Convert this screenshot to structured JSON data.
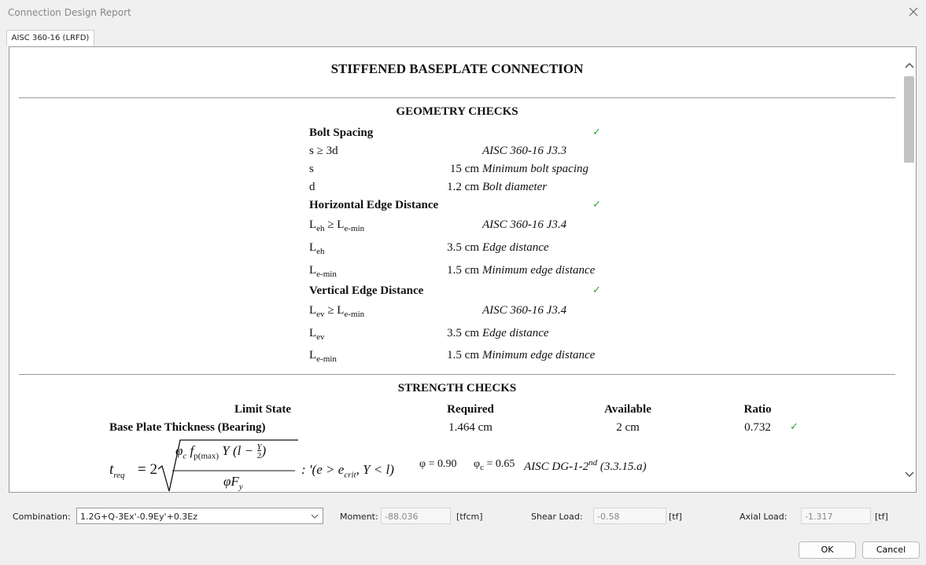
{
  "window": {
    "title": "Connection Design Report",
    "tab": "AISC 360-16 (LRFD)"
  },
  "report": {
    "title": "STIFFENED BASEPLATE CONNECTION",
    "geometry": {
      "heading": "GEOMETRY CHECKS",
      "groups": [
        {
          "name": "Bolt Spacing",
          "check": "✓",
          "rows": [
            {
              "label": [
                "s ≥ 3d"
              ],
              "note": "AISC 360-16 J3.3"
            },
            {
              "label": [
                "s"
              ],
              "value": "15 cm",
              "note": "Minimum bolt spacing"
            },
            {
              "label": [
                "d"
              ],
              "value": "1.2 cm",
              "note": "Bolt diameter"
            }
          ]
        },
        {
          "name": "Horizontal Edge Distance",
          "check": "✓",
          "rows": [
            {
              "label": [
                "L",
                "eh",
                " ≥ L",
                "e-min"
              ],
              "note": "AISC 360-16 J3.4"
            },
            {
              "label": [
                "L",
                "eh"
              ],
              "value": "3.5 cm",
              "note": "Edge distance"
            },
            {
              "label": [
                "L",
                "e-min"
              ],
              "value": "1.5 cm",
              "note": "Minimum edge distance"
            }
          ]
        },
        {
          "name": "Vertical Edge Distance",
          "check": "✓",
          "rows": [
            {
              "label": [
                "L",
                "ev",
                " ≥ L",
                "e-min"
              ],
              "note": "AISC 360-16 J3.4"
            },
            {
              "label": [
                "L",
                "ev"
              ],
              "value": "3.5 cm",
              "note": "Edge distance"
            },
            {
              "label": [
                "L",
                "e-min"
              ],
              "value": "1.5 cm",
              "note": "Minimum edge distance"
            }
          ]
        }
      ]
    },
    "strength": {
      "heading": "STRENGTH CHECKS",
      "columns": [
        "Limit State",
        "Required",
        "Available",
        "Ratio"
      ],
      "rows": [
        {
          "name": "Base Plate Thickness (Bearing)",
          "required": "1.464 cm",
          "available": "2 cm",
          "ratio": "0.732",
          "check": "✓"
        }
      ],
      "formula": {
        "lhs": "t",
        "lhs_sub": "req",
        "eq": "= 2",
        "phi": "φ",
        "phi_sub": "c",
        "f": "f",
        "f_sub": "p(max)",
        "mid": "Y",
        "open": "(l −",
        "fn": "Y",
        "fd": "2",
        "close": ")",
        "den": "φF",
        "den_sub": "y",
        "cond": ": '(e > e",
        "cond_sub": "crit",
        "cond_rest": ", Y < l)",
        "phi_val": "φ = 0.90",
        "phic": "φ",
        "phic_sub": "c",
        "phic_val": " = 0.65",
        "ref": "AISC DG-1-2",
        "ref_sup": "nd",
        "ref_rest": " (3.3.15.a)"
      }
    }
  },
  "controls": {
    "combination_label": "Combination:",
    "combination": "1.2G+Q-3Ex'-0.9Ey'+0.3Ez",
    "moment_label": "Moment:",
    "moment": "-88.036",
    "moment_unit": "[tfcm]",
    "shear_label": "Shear Load:",
    "shear": "-0.58",
    "shear_unit": "[tf]",
    "axial_label": "Axial Load:",
    "axial": "-1.317",
    "axial_unit": "[tf]",
    "ok": "OK",
    "cancel": "Cancel"
  }
}
